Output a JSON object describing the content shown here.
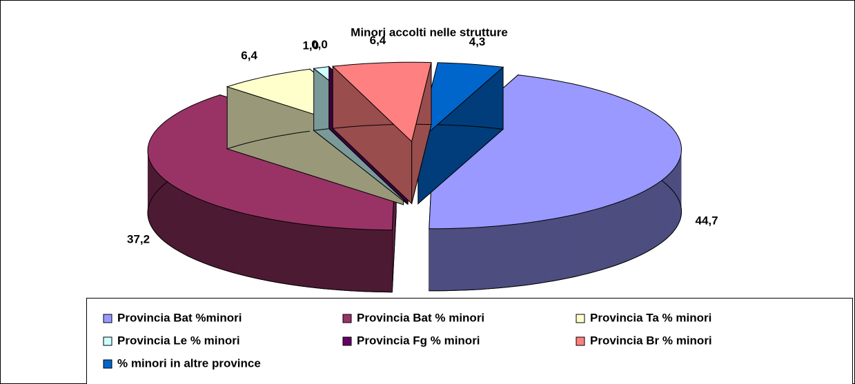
{
  "chart_data": {
    "type": "pie",
    "title": "Minori accolti nelle strutture",
    "categories": [
      "Provincia Bat %minori",
      "Provincia Bat % minori",
      "Provincia Ta % minori",
      "Provincia Le % minori",
      "Provincia Fg % minori",
      "Provincia Br % minori",
      "% minori in altre province"
    ],
    "values": [
      44.7,
      37.2,
      6.4,
      1.0,
      0.0,
      6.4,
      4.3
    ],
    "value_labels": [
      "44,7",
      "37,2",
      "6,4",
      "1,0",
      "0,0",
      "6,4",
      "4,3"
    ],
    "colors": [
      "#9999ff",
      "#993366",
      "#ffffcc",
      "#ccffff",
      "#660066",
      "#ff8080",
      "#0066cc"
    ],
    "legend": "bottom"
  }
}
